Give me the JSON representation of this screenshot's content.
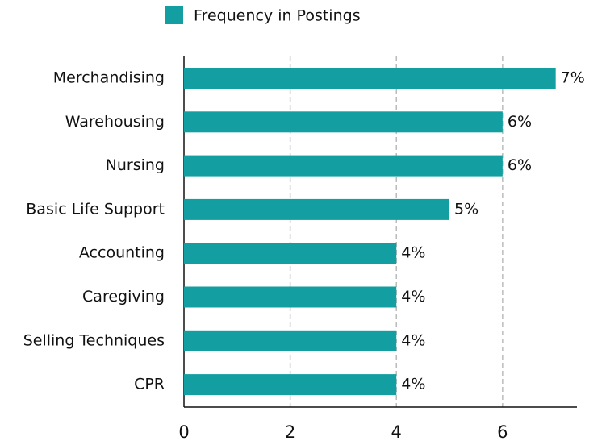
{
  "chart_data": {
    "type": "bar",
    "orientation": "horizontal",
    "categories": [
      "Merchandising",
      "Warehousing",
      "Nursing",
      "Basic Life Support",
      "Accounting",
      "Caregiving",
      "Selling Techniques",
      "CPR"
    ],
    "series": [
      {
        "name": "Frequency in Postings",
        "color": "#139fa1",
        "values": [
          7,
          6,
          6,
          5,
          4,
          4,
          4,
          4
        ],
        "value_labels": [
          "7%",
          "6%",
          "6%",
          "5%",
          "4%",
          "4%",
          "4%",
          "4%"
        ]
      }
    ],
    "xlim": [
      0,
      7.4
    ],
    "xticks": [
      0,
      2,
      4,
      6
    ],
    "grid": true,
    "legend": "top"
  }
}
